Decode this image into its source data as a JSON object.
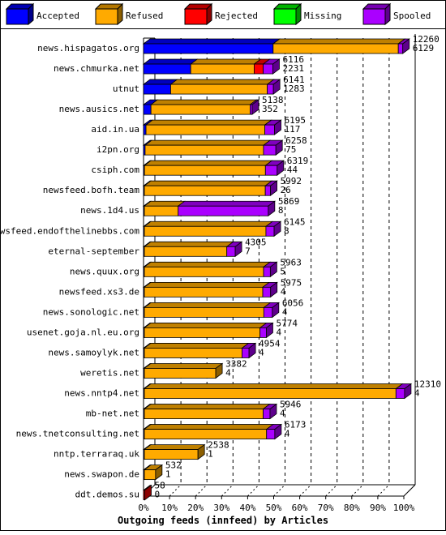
{
  "chart_data": {
    "type": "bar",
    "orientation": "horizontal",
    "stacked": true,
    "title": "Outgoing feeds (innfeed) by Articles",
    "xlabel": "Outgoing feeds (innfeed) by Articles",
    "ylabel": "",
    "xlim": [
      0,
      100
    ],
    "x_unit": "percent",
    "grid": "vertical dashed",
    "legend_position": "top",
    "x_ticks": [
      "0%",
      "10%",
      "20%",
      "30%",
      "40%",
      "50%",
      "60%",
      "70%",
      "80%",
      "90%",
      "100%"
    ],
    "series": [
      {
        "name": "Accepted",
        "color": "#0000ff"
      },
      {
        "name": "Refused",
        "color": "#ffaa00"
      },
      {
        "name": "Rejected",
        "color": "#ff0000"
      },
      {
        "name": "Missing",
        "color": "#00ff00"
      },
      {
        "name": "Spooled",
        "color": "#aa00ff"
      }
    ],
    "categories": [
      "news.hispagatos.org",
      "news.chmurka.net",
      "utnut",
      "news.ausics.net",
      "aid.in.ua",
      "i2pn.org",
      "csiph.com",
      "newsfeed.bofh.team",
      "news.1d4.us",
      "newsfeed.endofthelinebbs.com",
      "eternal-september",
      "news.quux.org",
      "newsfeed.xs3.de",
      "news.sonologic.net",
      "usenet.goja.nl.eu.org",
      "news.samoylyk.net",
      "weretis.net",
      "news.nntp4.net",
      "mb-net.net",
      "news.tnetconsulting.net",
      "nntp.terraraq.uk",
      "news.swapon.de",
      "ddt.demos.su"
    ],
    "rows": [
      {
        "label": "news.hispagatos.org",
        "offered": "12260",
        "accepted": "6129",
        "segments": {
          "Accepted": 6129,
          "Refused": 5920,
          "Rejected": 0,
          "Missing": 0,
          "Spooled": 211
        }
      },
      {
        "label": "news.chmurka.net",
        "offered": "6116",
        "accepted": "2231",
        "segments": {
          "Accepted": 2231,
          "Refused": 3000,
          "Rejected": 430,
          "Missing": 0,
          "Spooled": 455
        }
      },
      {
        "label": "utnut",
        "offered": "6141",
        "accepted": "1283",
        "segments": {
          "Accepted": 1283,
          "Refused": 4570,
          "Rejected": 0,
          "Missing": 0,
          "Spooled": 288
        }
      },
      {
        "label": "news.ausics.net",
        "offered": "5138",
        "accepted": "352",
        "segments": {
          "Accepted": 352,
          "Refused": 4690,
          "Rejected": 0,
          "Missing": 0,
          "Spooled": 96
        }
      },
      {
        "label": "aid.in.ua",
        "offered": "6195",
        "accepted": "117",
        "segments": {
          "Accepted": 117,
          "Refused": 5620,
          "Rejected": 0,
          "Missing": 0,
          "Spooled": 458
        }
      },
      {
        "label": "i2pn.org",
        "offered": "6258",
        "accepted": "75",
        "segments": {
          "Accepted": 75,
          "Refused": 5600,
          "Rejected": 0,
          "Missing": 0,
          "Spooled": 583
        }
      },
      {
        "label": "csiph.com",
        "offered": "6319",
        "accepted": "44",
        "segments": {
          "Accepted": 44,
          "Refused": 5720,
          "Rejected": 0,
          "Missing": 0,
          "Spooled": 555
        }
      },
      {
        "label": "newsfeed.bofh.team",
        "offered": "5992",
        "accepted": "26",
        "segments": {
          "Accepted": 26,
          "Refused": 5720,
          "Rejected": 0,
          "Missing": 0,
          "Spooled": 246
        }
      },
      {
        "label": "news.1d4.us",
        "offered": "5869",
        "accepted": "8",
        "segments": {
          "Accepted": 8,
          "Refused": 1600,
          "Rejected": 0,
          "Missing": 0,
          "Spooled": 4261
        }
      },
      {
        "label": "newsfeed.endofthelinebbs.com",
        "offered": "6145",
        "accepted": "8",
        "segments": {
          "Accepted": 8,
          "Refused": 5750,
          "Rejected": 0,
          "Missing": 0,
          "Spooled": 387
        }
      },
      {
        "label": "eternal-september",
        "offered": "4305",
        "accepted": "7",
        "segments": {
          "Accepted": 7,
          "Refused": 3900,
          "Rejected": 0,
          "Missing": 0,
          "Spooled": 398
        }
      },
      {
        "label": "news.quux.org",
        "offered": "5963",
        "accepted": "5",
        "segments": {
          "Accepted": 5,
          "Refused": 5640,
          "Rejected": 0,
          "Missing": 0,
          "Spooled": 318
        }
      },
      {
        "label": "newsfeed.xs3.de",
        "offered": "5975",
        "accepted": "4",
        "segments": {
          "Accepted": 4,
          "Refused": 5600,
          "Rejected": 0,
          "Missing": 0,
          "Spooled": 371
        }
      },
      {
        "label": "news.sonologic.net",
        "offered": "6056",
        "accepted": "4",
        "segments": {
          "Accepted": 4,
          "Refused": 5650,
          "Rejected": 0,
          "Missing": 0,
          "Spooled": 402
        }
      },
      {
        "label": "usenet.goja.nl.eu.org",
        "offered": "5774",
        "accepted": "4",
        "segments": {
          "Accepted": 4,
          "Refused": 5470,
          "Rejected": 0,
          "Missing": 0,
          "Spooled": 300
        }
      },
      {
        "label": "news.samoylyk.net",
        "offered": "4954",
        "accepted": "4",
        "segments": {
          "Accepted": 4,
          "Refused": 4620,
          "Rejected": 0,
          "Missing": 0,
          "Spooled": 330
        }
      },
      {
        "label": "weretis.net",
        "offered": "3382",
        "accepted": "4",
        "segments": {
          "Accepted": 4,
          "Refused": 3378,
          "Rejected": 0,
          "Missing": 0,
          "Spooled": 0
        }
      },
      {
        "label": "news.nntp4.net",
        "offered": "12310",
        "accepted": "4",
        "segments": {
          "Accepted": 4,
          "Refused": 11900,
          "Rejected": 0,
          "Missing": 0,
          "Spooled": 406
        }
      },
      {
        "label": "mb-net.net",
        "offered": "5946",
        "accepted": "4",
        "segments": {
          "Accepted": 4,
          "Refused": 5620,
          "Rejected": 0,
          "Missing": 0,
          "Spooled": 322
        }
      },
      {
        "label": "news.tnetconsulting.net",
        "offered": "6173",
        "accepted": "4",
        "segments": {
          "Accepted": 4,
          "Refused": 5780,
          "Rejected": 0,
          "Missing": 0,
          "Spooled": 389
        }
      },
      {
        "label": "nntp.terraraq.uk",
        "offered": "2538",
        "accepted": "1",
        "segments": {
          "Accepted": 1,
          "Refused": 2537,
          "Rejected": 0,
          "Missing": 0,
          "Spooled": 0
        }
      },
      {
        "label": "news.swapon.de",
        "offered": "532",
        "accepted": "1",
        "segments": {
          "Accepted": 1,
          "Refused": 531,
          "Rejected": 0,
          "Missing": 0,
          "Spooled": 0
        }
      },
      {
        "label": "ddt.demos.su",
        "offered": "58",
        "accepted": "0",
        "segments": {
          "Accepted": 0,
          "Refused": 0,
          "Rejected": 58,
          "Missing": 0,
          "Spooled": 0
        }
      }
    ],
    "max_offered": 12310
  }
}
